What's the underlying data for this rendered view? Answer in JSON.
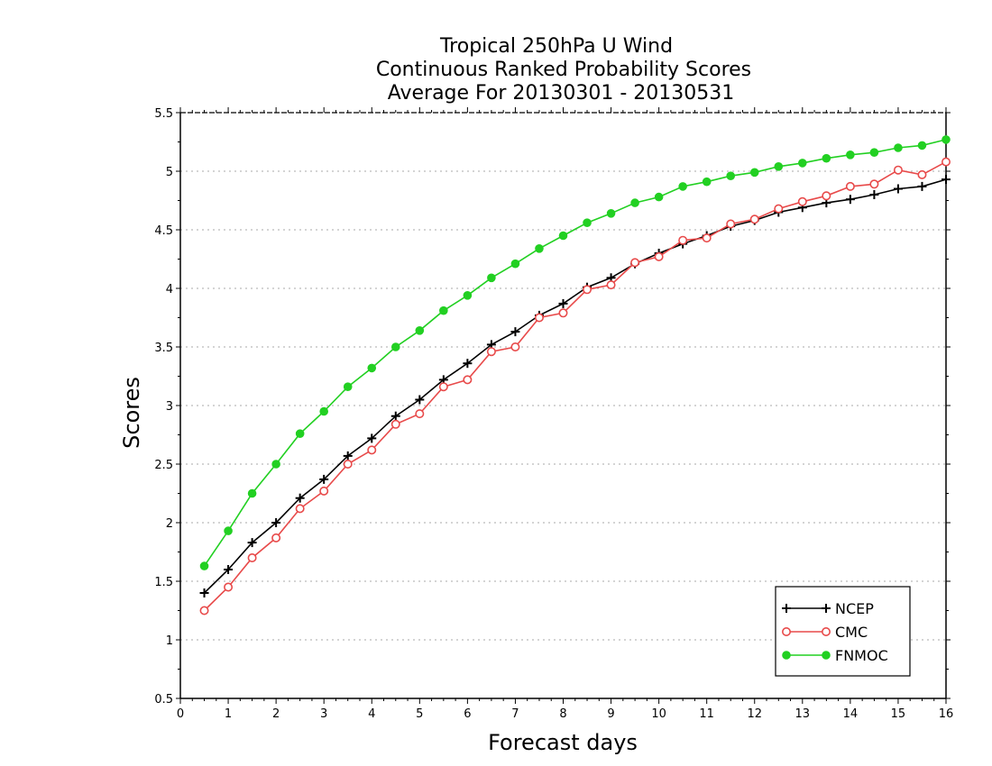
{
  "chart_data": {
    "type": "line",
    "title": "Tropical 250hPa U Wind",
    "subtitle": "Continuous Ranked Probability Scores",
    "subtitle2": "Average For 20130301 - 20130531",
    "xlabel": "Forecast days",
    "ylabel": "Scores",
    "xlim": [
      0,
      16
    ],
    "ylim": [
      0.5,
      5.5
    ],
    "x_ticks": [
      "0",
      "1",
      "2",
      "3",
      "4",
      "5",
      "6",
      "7",
      "8",
      "9",
      "10",
      "11",
      "12",
      "13",
      "14",
      "15",
      "16"
    ],
    "y_ticks": [
      "0.5",
      "1",
      "1.5",
      "2",
      "2.5",
      "3",
      "3.5",
      "4",
      "4.5",
      "5",
      "5.5"
    ],
    "grid": true,
    "legend_position": "bottom-right",
    "x": [
      0.5,
      1,
      1.5,
      2,
      2.5,
      3,
      3.5,
      4,
      4.5,
      5,
      5.5,
      6,
      6.5,
      7,
      7.5,
      8,
      8.5,
      9,
      9.5,
      10,
      10.5,
      11,
      11.5,
      12,
      12.5,
      13,
      13.5,
      14,
      14.5,
      15,
      15.5,
      16
    ],
    "series": [
      {
        "name": "NCEP",
        "color": "#000000",
        "marker": "plus",
        "values": [
          1.4,
          1.6,
          1.83,
          2.0,
          2.21,
          2.37,
          2.57,
          2.72,
          2.91,
          3.05,
          3.22,
          3.36,
          3.52,
          3.63,
          3.77,
          3.87,
          4.01,
          4.09,
          4.21,
          4.3,
          4.38,
          4.45,
          4.53,
          4.58,
          4.65,
          4.69,
          4.73,
          4.76,
          4.8,
          4.85,
          4.87,
          4.93
        ]
      },
      {
        "name": "CMC",
        "color": "#e84a4a",
        "marker": "open-circle",
        "values": [
          1.25,
          1.45,
          1.7,
          1.87,
          2.12,
          2.27,
          2.5,
          2.62,
          2.84,
          2.93,
          3.16,
          3.22,
          3.46,
          3.5,
          3.75,
          3.79,
          3.99,
          4.03,
          4.22,
          4.27,
          4.41,
          4.43,
          4.55,
          4.59,
          4.68,
          4.74,
          4.79,
          4.87,
          4.89,
          5.01,
          4.97,
          5.08
        ]
      },
      {
        "name": "FNMOC",
        "color": "#22d022",
        "marker": "filled-circle",
        "values": [
          1.63,
          1.93,
          2.25,
          2.5,
          2.76,
          2.95,
          3.16,
          3.32,
          3.5,
          3.64,
          3.81,
          3.94,
          4.09,
          4.21,
          4.34,
          4.45,
          4.56,
          4.64,
          4.73,
          4.78,
          4.87,
          4.91,
          4.96,
          4.99,
          5.04,
          5.07,
          5.11,
          5.14,
          5.16,
          5.2,
          5.22,
          5.27
        ]
      }
    ]
  }
}
